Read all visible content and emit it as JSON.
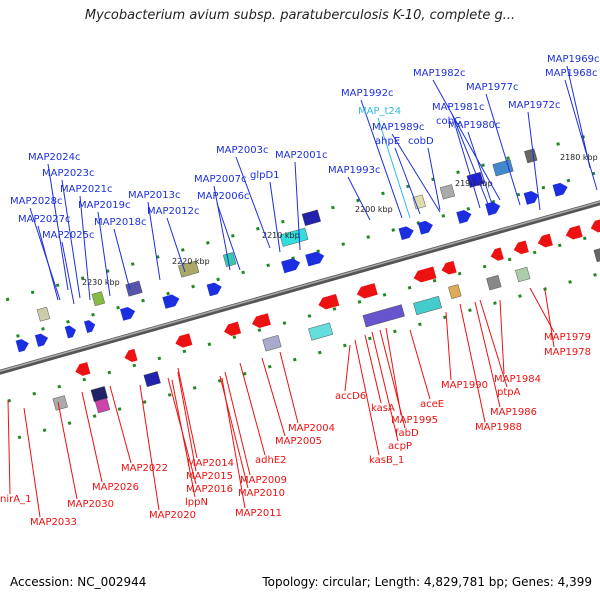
{
  "title": "Mycobacterium avium subsp. paratuberculosis K-10, complete g...",
  "footer": {
    "accession": "Accession: NC_002944",
    "summary": "Topology: circular; Length: 4,829,781 bp; Genes: 4,399"
  },
  "colors": {
    "forward_gene": "#1c2fe0",
    "reverse_gene": "#ee1111",
    "trna": "#33bbdd",
    "backbone": "#808080",
    "tick": "#228822"
  },
  "ticks": [
    "2180 kbp",
    "2190 kbp",
    "2200 kbp",
    "2210 kbp",
    "2220 kbp",
    "2230 kbp"
  ],
  "top_labels": [
    "MAP1969c",
    "MAP1968c",
    "MAP1982c",
    "MAP1977c",
    "MAP1972c",
    "cobC",
    "MAP1981c",
    "MAP1992c",
    "MAP_t24",
    "MAP1980c",
    "MAP1989c",
    "ahpE",
    "cobD",
    "MAP2003c",
    "MAP2001c",
    "MAP2024c",
    "MAP1993c",
    "glpD1",
    "MAP2023c",
    "MAP2007c",
    "MAP2021c",
    "MAP2028c",
    "MAP2013c",
    "MAP2006c",
    "MAP2019c",
    "MAP2012c",
    "MAP2027c",
    "MAP2018c",
    "MAP2025c"
  ],
  "bottom_labels": [
    "MAP1979",
    "MAP1978",
    "MAP1984",
    "MAP1990",
    "ptpA",
    "MAP1986",
    "MAP1988",
    "accD6",
    "aceE",
    "kasA",
    "MAP1995",
    "fabD",
    "acpP",
    "kasB_1",
    "MAP2004",
    "MAP2005",
    "adhE2",
    "MAP2014",
    "MAP2015",
    "MAP2022",
    "MAP2009",
    "MAP2016",
    "MAP2010",
    "lppN",
    "MAP2026",
    "MAP2011",
    "MAP2020",
    "nirA_1",
    "MAP2030",
    "MAP2033"
  ]
}
